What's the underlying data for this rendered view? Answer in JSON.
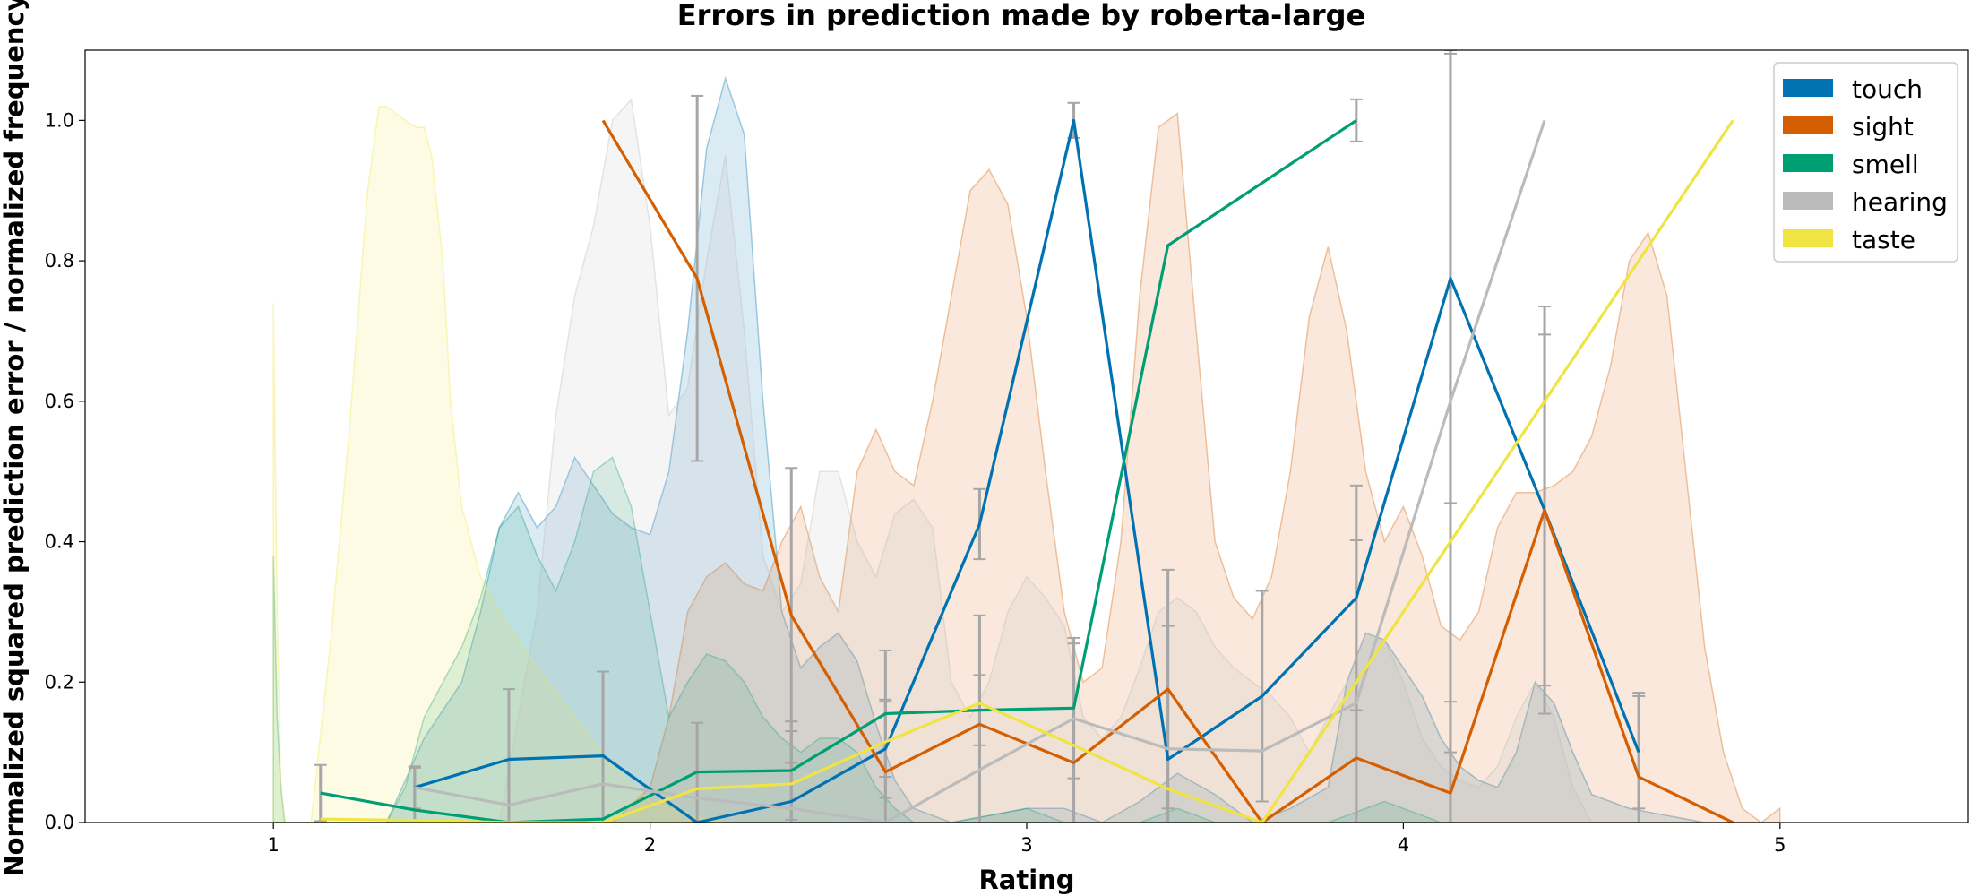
{
  "chart_data": {
    "type": "line",
    "title": "Errors in prediction made by roberta-large",
    "xlabel": "Rating",
    "ylabel": "Normalized squared prediction error / normalized frequency",
    "xlim": [
      0.5,
      5.5
    ],
    "ylim": [
      0,
      1.1
    ],
    "xticks": [
      1,
      2,
      3,
      4,
      5
    ],
    "yticks": [
      0.0,
      0.2,
      0.4,
      0.6,
      0.8,
      1.0
    ],
    "xtick_labels": [
      "1",
      "2",
      "3",
      "4",
      "5"
    ],
    "ytick_labels": [
      "0.0",
      "0.2",
      "0.4",
      "0.6",
      "0.8",
      "1.0"
    ],
    "grid": false,
    "legend_position": "top-right",
    "series": [
      {
        "name": "touch",
        "color": "#0072B2",
        "x": [
          1.375,
          1.625,
          1.875,
          2.125,
          2.375,
          2.625,
          2.875,
          3.125,
          3.375,
          3.625,
          3.875,
          4.125,
          4.375,
          4.625
        ],
        "y": [
          0.05,
          0.09,
          0.095,
          0.0,
          0.03,
          0.105,
          0.425,
          1.0,
          0.09,
          0.18,
          0.32,
          0.775,
          0.445,
          0.1
        ],
        "err": [
          0.03,
          0.1,
          0.12,
          0.0,
          0.1,
          0.07,
          0.05,
          0.025,
          0.19,
          0.15,
          0.16,
          0.32,
          0.29,
          0.08
        ],
        "dist_x": [
          0.99,
          1.0,
          1.05,
          1.1,
          1.2,
          1.3,
          1.4,
          1.5,
          1.55,
          1.6,
          1.65,
          1.7,
          1.75,
          1.8,
          1.85,
          1.9,
          1.95,
          2.0,
          2.05,
          2.1,
          2.15,
          2.2,
          2.25,
          2.3,
          2.35,
          2.4,
          2.45,
          2.5,
          2.55,
          2.6,
          2.65,
          2.7,
          2.8,
          2.9,
          3.0,
          3.1,
          3.2,
          3.3,
          3.4,
          3.5,
          3.6,
          3.7,
          3.8,
          3.85,
          3.9,
          3.95,
          4.0,
          4.05,
          4.1,
          4.15,
          4.2,
          4.25,
          4.3,
          4.35,
          4.4,
          4.45,
          4.5,
          4.6,
          4.7,
          4.8,
          4.9,
          5.0
        ],
        "dist_y": [
          0.0,
          0.0,
          0.0,
          0.0,
          0.0,
          0.0,
          0.12,
          0.2,
          0.3,
          0.42,
          0.47,
          0.42,
          0.45,
          0.52,
          0.48,
          0.44,
          0.42,
          0.41,
          0.5,
          0.7,
          0.96,
          1.06,
          0.98,
          0.6,
          0.3,
          0.22,
          0.25,
          0.27,
          0.23,
          0.14,
          0.06,
          0.02,
          0.0,
          0.01,
          0.02,
          0.02,
          0.0,
          0.03,
          0.07,
          0.04,
          0.0,
          0.02,
          0.05,
          0.2,
          0.27,
          0.26,
          0.22,
          0.18,
          0.12,
          0.08,
          0.06,
          0.05,
          0.1,
          0.2,
          0.17,
          0.1,
          0.04,
          0.02,
          0.01,
          0.0,
          0.0,
          0.0
        ]
      },
      {
        "name": "sight",
        "color": "#D55E00",
        "x": [
          1.875,
          2.125,
          2.375,
          2.625,
          2.875,
          3.125,
          3.375,
          3.625,
          3.875,
          4.125,
          4.375,
          4.625,
          4.875
        ],
        "y": [
          1.0,
          0.775,
          0.295,
          0.072,
          0.14,
          0.085,
          0.19,
          0.0,
          0.092,
          0.042,
          0.445,
          0.065,
          0.0
        ],
        "err": [
          0.0,
          0.26,
          0.21,
          0.1,
          0.155,
          0.17,
          0.17,
          0.0,
          0.31,
          0.13,
          0.25,
          0.12,
          0.0
        ],
        "dist_x": [
          1.85,
          1.9,
          2.0,
          2.05,
          2.1,
          2.15,
          2.2,
          2.25,
          2.3,
          2.35,
          2.4,
          2.45,
          2.5,
          2.55,
          2.6,
          2.65,
          2.7,
          2.75,
          2.8,
          2.85,
          2.9,
          2.95,
          3.0,
          3.05,
          3.1,
          3.15,
          3.2,
          3.25,
          3.3,
          3.35,
          3.4,
          3.45,
          3.5,
          3.55,
          3.6,
          3.65,
          3.7,
          3.75,
          3.8,
          3.85,
          3.9,
          3.95,
          4.0,
          4.05,
          4.1,
          4.15,
          4.2,
          4.25,
          4.3,
          4.35,
          4.4,
          4.45,
          4.5,
          4.55,
          4.6,
          4.65,
          4.7,
          4.75,
          4.8,
          4.85,
          4.9,
          4.95,
          5.0
        ],
        "dist_y": [
          0.0,
          0.0,
          0.05,
          0.15,
          0.3,
          0.35,
          0.37,
          0.34,
          0.33,
          0.4,
          0.45,
          0.35,
          0.3,
          0.5,
          0.56,
          0.5,
          0.48,
          0.6,
          0.75,
          0.9,
          0.93,
          0.88,
          0.72,
          0.5,
          0.3,
          0.2,
          0.22,
          0.4,
          0.75,
          0.99,
          1.01,
          0.7,
          0.4,
          0.32,
          0.29,
          0.35,
          0.5,
          0.72,
          0.82,
          0.7,
          0.5,
          0.4,
          0.45,
          0.38,
          0.28,
          0.26,
          0.3,
          0.42,
          0.47,
          0.47,
          0.48,
          0.5,
          0.55,
          0.65,
          0.8,
          0.84,
          0.75,
          0.5,
          0.25,
          0.1,
          0.02,
          0.0,
          0.02
        ]
      },
      {
        "name": "smell",
        "color": "#009E73",
        "x": [
          1.125,
          1.375,
          1.625,
          1.875,
          2.125,
          2.375,
          2.625,
          2.875,
          3.125,
          3.375,
          3.875
        ],
        "y": [
          0.042,
          0.018,
          0.0,
          0.005,
          0.072,
          0.074,
          0.155,
          0.16,
          0.163,
          0.822,
          1.0
        ],
        "err": [
          0.04,
          0.06,
          0.0,
          0.0,
          0.07,
          0.07,
          0.09,
          0.05,
          0.1,
          0.0,
          0.03
        ],
        "dist_x": [
          1.0,
          1.01,
          1.02,
          1.03,
          1.05,
          1.1,
          1.15,
          1.2,
          1.25,
          1.3,
          1.35,
          1.4,
          1.45,
          1.5,
          1.55,
          1.6,
          1.65,
          1.7,
          1.75,
          1.8,
          1.85,
          1.9,
          1.95,
          2.0,
          2.05,
          2.1,
          2.15,
          2.2,
          2.25,
          2.3,
          2.35,
          2.4,
          2.45,
          2.5,
          2.55,
          2.6,
          2.65,
          2.7,
          2.8,
          2.9,
          3.0,
          3.1,
          3.2,
          3.3,
          3.4,
          3.5,
          3.8,
          3.9,
          3.95,
          4.0,
          4.1
        ],
        "dist_y": [
          0.38,
          0.15,
          0.05,
          0.0,
          0.0,
          0.0,
          0.0,
          0.0,
          0.0,
          0.0,
          0.05,
          0.15,
          0.2,
          0.25,
          0.32,
          0.42,
          0.45,
          0.38,
          0.33,
          0.4,
          0.5,
          0.52,
          0.45,
          0.3,
          0.15,
          0.2,
          0.24,
          0.23,
          0.2,
          0.15,
          0.12,
          0.1,
          0.12,
          0.12,
          0.1,
          0.05,
          0.02,
          0.0,
          0.0,
          0.01,
          0.02,
          0.0,
          0.0,
          0.0,
          0.02,
          0.0,
          0.0,
          0.02,
          0.03,
          0.02,
          0.0
        ]
      },
      {
        "name": "hearing",
        "color": "#BBBBBB",
        "x": [
          1.375,
          1.625,
          1.875,
          2.125,
          2.375,
          2.625,
          2.875,
          3.125,
          3.375,
          3.625,
          3.875,
          4.125,
          4.375
        ],
        "y": [
          0.05,
          0.025,
          0.055,
          0.035,
          0.02,
          0.0,
          0.075,
          0.148,
          0.105,
          0.102,
          0.17,
          0.6,
          1.0
        ],
        "err": [
          0.0,
          0.0,
          0.0,
          0.0,
          0.0,
          0.0,
          0.0,
          0.0,
          0.0,
          0.0,
          0.0,
          0.5,
          0.0
        ],
        "dist_x": [
          1.6,
          1.7,
          1.75,
          1.8,
          1.85,
          1.9,
          1.95,
          2.0,
          2.05,
          2.1,
          2.15,
          2.2,
          2.25,
          2.3,
          2.35,
          2.4,
          2.45,
          2.5,
          2.55,
          2.6,
          2.65,
          2.7,
          2.75,
          2.8,
          2.85,
          2.9,
          2.95,
          3.0,
          3.05,
          3.1,
          3.15,
          3.2,
          3.25,
          3.3,
          3.35,
          3.4,
          3.45,
          3.5,
          3.55,
          3.6,
          3.65,
          3.7,
          3.75,
          3.8,
          3.85,
          3.9,
          3.95,
          4.0,
          4.05,
          4.1,
          4.15,
          4.2,
          4.25,
          4.3,
          4.35,
          4.4,
          4.45,
          4.5
        ],
        "dist_y": [
          0.0,
          0.3,
          0.58,
          0.75,
          0.85,
          1.0,
          1.03,
          0.85,
          0.58,
          0.62,
          0.8,
          0.95,
          0.7,
          0.38,
          0.3,
          0.34,
          0.5,
          0.5,
          0.4,
          0.35,
          0.44,
          0.46,
          0.42,
          0.2,
          0.15,
          0.2,
          0.3,
          0.35,
          0.32,
          0.28,
          0.15,
          0.12,
          0.15,
          0.22,
          0.3,
          0.32,
          0.3,
          0.25,
          0.22,
          0.2,
          0.18,
          0.15,
          0.1,
          0.15,
          0.2,
          0.27,
          0.26,
          0.2,
          0.12,
          0.08,
          0.06,
          0.05,
          0.08,
          0.15,
          0.2,
          0.15,
          0.05,
          0.0
        ]
      },
      {
        "name": "taste",
        "color": "#F0E442",
        "x": [
          1.125,
          1.375,
          1.625,
          1.875,
          2.125,
          2.375,
          2.625,
          2.875,
          3.125,
          3.375,
          3.625,
          3.875,
          4.125,
          4.375,
          4.625,
          4.875
        ],
        "y": [
          0.005,
          0.003,
          0.0,
          0.0,
          0.048,
          0.055,
          0.115,
          0.17,
          0.11,
          0.048,
          0.0,
          0.2,
          0.4,
          0.6,
          0.8,
          1.0
        ],
        "err": [
          0.0,
          0.0,
          0.0,
          0.0,
          0.0,
          0.0,
          0.0,
          0.0,
          0.0,
          0.0,
          0.0,
          0.0,
          0.0,
          0.0,
          0.0,
          0.0
        ],
        "dist_x": [
          1.0,
          1.01,
          1.02,
          1.03,
          1.05,
          1.1,
          1.15,
          1.2,
          1.25,
          1.28,
          1.3,
          1.35,
          1.38,
          1.4,
          1.42,
          1.45,
          1.47,
          1.5,
          1.55,
          1.6,
          1.7,
          1.8,
          1.9,
          2.0,
          2.1,
          2.2
        ],
        "dist_y": [
          0.74,
          0.3,
          0.05,
          0.0,
          0.0,
          0.0,
          0.25,
          0.55,
          0.9,
          1.02,
          1.02,
          1.0,
          0.99,
          0.99,
          0.95,
          0.8,
          0.6,
          0.45,
          0.35,
          0.3,
          0.22,
          0.15,
          0.08,
          0.03,
          0.01,
          0.0
        ]
      }
    ]
  }
}
